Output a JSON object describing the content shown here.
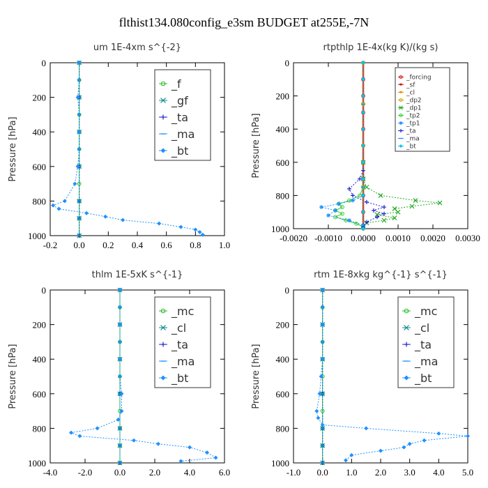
{
  "title": "flthist134.080config_e3sm  BUDGET at255E,-7N",
  "ylabel": "Pressure [hPa]",
  "chart_data": [
    {
      "type": "line",
      "title": "um  1E-4xm s^{-2}",
      "xlim": [
        -0.2,
        1.0
      ],
      "ylim": [
        1000,
        0
      ],
      "xticks": [
        "-0.2",
        "0.0",
        "0.2",
        "0.4",
        "0.6",
        "0.8",
        "1.0"
      ],
      "xtick_values": [
        -0.2,
        0.0,
        0.2,
        0.4,
        0.6,
        0.8,
        1.0
      ],
      "yticks": [
        "0",
        "200",
        "400",
        "600",
        "800",
        "1000"
      ],
      "ytick_values": [
        0,
        200,
        400,
        600,
        800,
        1000
      ],
      "legend_size": "large",
      "series": [
        {
          "name": "_f",
          "color": "#22bb22",
          "marker": "circle",
          "x": [
            0,
            0,
            0,
            0,
            0,
            0,
            0,
            0,
            0,
            0,
            0
          ],
          "y": [
            0,
            100,
            200,
            300,
            400,
            500,
            600,
            700,
            800,
            900,
            1000
          ]
        },
        {
          "name": "_gf",
          "color": "#0b8a8a",
          "marker": "x",
          "x": [
            0,
            0,
            0,
            0,
            0,
            0,
            0
          ],
          "y": [
            0,
            200,
            400,
            600,
            800,
            900,
            1000
          ]
        },
        {
          "name": "_ta",
          "color": "#2020cc",
          "marker": "plus",
          "x": [
            0,
            0,
            0,
            0,
            0,
            0,
            0
          ],
          "y": [
            0,
            200,
            400,
            600,
            800,
            900,
            1000
          ]
        },
        {
          "name": "_ma",
          "color": "#1e90ff",
          "marker": "dash",
          "x": [
            0,
            0,
            0,
            0,
            0,
            0,
            0
          ],
          "y": [
            0,
            200,
            400,
            600,
            800,
            900,
            1000
          ]
        },
        {
          "name": "_bt",
          "color": "#1e90ff",
          "marker": "diamond",
          "x": [
            0.0,
            0.0,
            -0.01,
            0.0,
            0.0,
            0.0,
            -0.01,
            -0.03,
            -0.1,
            -0.18,
            -0.14,
            0.05,
            0.18,
            0.3,
            0.55,
            0.7,
            0.8,
            0.83,
            0.85
          ],
          "y": [
            0,
            100,
            200,
            300,
            400,
            500,
            600,
            700,
            800,
            825,
            845,
            870,
            890,
            910,
            930,
            950,
            965,
            980,
            995
          ]
        }
      ]
    },
    {
      "type": "line",
      "title": "rtpthlp  1E-4x(kg K)/(kg s)",
      "xlim": [
        -0.002,
        0.003
      ],
      "ylim": [
        1000,
        0
      ],
      "xticks": [
        "-0.0020",
        "-0.0010",
        "0.0000",
        "0.0010",
        "0.0020",
        "0.0030"
      ],
      "xtick_values": [
        -0.002,
        -0.001,
        0.0,
        0.001,
        0.002,
        0.003
      ],
      "yticks": [
        "0",
        "200",
        "400",
        "600",
        "800",
        "1000"
      ],
      "ytick_values": [
        0,
        200,
        400,
        600,
        800,
        1000
      ],
      "legend_size": "small",
      "series": [
        {
          "name": "_forcing",
          "color": "#dd1111",
          "marker": "circle",
          "x": [
            0,
            0,
            0,
            0,
            0,
            0,
            0,
            0,
            0,
            0,
            0
          ],
          "y": [
            0,
            100,
            200,
            300,
            400,
            500,
            600,
            700,
            800,
            900,
            1000
          ]
        },
        {
          "name": "_sf",
          "color": "#cc2222",
          "marker": "tri",
          "x": [
            0,
            0,
            0,
            0,
            0
          ],
          "y": [
            0,
            250,
            500,
            750,
            1000
          ]
        },
        {
          "name": "_cl",
          "color": "#e69500",
          "marker": "tri",
          "x": [
            0,
            0,
            0,
            0,
            0
          ],
          "y": [
            0,
            250,
            500,
            750,
            1000
          ]
        },
        {
          "name": "_dp2",
          "color": "#ccaa00",
          "marker": "circle",
          "x": [
            0,
            0,
            0,
            0,
            0
          ],
          "y": [
            0,
            250,
            500,
            750,
            1000
          ]
        },
        {
          "name": "_dp1",
          "color": "#22aa22",
          "marker": "x",
          "x": [
            0.0,
            0.0,
            0.0001,
            0.0005,
            0.0015,
            0.0022,
            0.0014,
            0.0009,
            0.001,
            0.0004,
            0.0009,
            0.0006,
            0.0001,
            0.0
          ],
          "y": [
            600,
            700,
            750,
            800,
            830,
            845,
            865,
            880,
            900,
            915,
            935,
            950,
            965,
            990
          ]
        },
        {
          "name": "_tp2",
          "color": "#33cc33",
          "marker": "circle",
          "x": [
            0.0,
            -0.0001,
            -0.0004,
            -0.0007,
            -0.0006,
            -0.0008,
            -0.0006,
            -0.0008,
            -0.0005,
            -0.0002,
            0.0
          ],
          "y": [
            750,
            800,
            830,
            850,
            870,
            890,
            910,
            930,
            950,
            970,
            990
          ]
        },
        {
          "name": "_tp1",
          "color": "#1e90ff",
          "marker": "asterisk",
          "x": [
            0.0,
            -0.0003,
            -0.0007,
            -0.0012,
            -0.0008,
            -0.001,
            -0.0004,
            0.0
          ],
          "y": [
            800,
            830,
            850,
            870,
            890,
            920,
            950,
            980
          ]
        },
        {
          "name": "_ta",
          "color": "#2020cc",
          "marker": "plus",
          "x": [
            0.0,
            -0.0001,
            -0.0004,
            -0.0003,
            0.0001,
            0.0006,
            0.0003,
            0.0006,
            0.0004,
            0.0001,
            0.0
          ],
          "y": [
            650,
            700,
            760,
            800,
            840,
            870,
            890,
            910,
            930,
            960,
            990
          ]
        },
        {
          "name": "_ma",
          "color": "#1e90ff",
          "marker": "dash",
          "x": [
            0,
            0,
            0,
            0,
            0
          ],
          "y": [
            0,
            250,
            500,
            750,
            1000
          ]
        },
        {
          "name": "_bt",
          "color": "#00c8e6",
          "marker": "diamond",
          "x": [
            0,
            0,
            0,
            0,
            0,
            0,
            0,
            0,
            0,
            0,
            0
          ],
          "y": [
            0,
            100,
            200,
            300,
            400,
            500,
            600,
            700,
            800,
            900,
            1000
          ]
        }
      ]
    },
    {
      "type": "line",
      "title": "thlm  1E-5xK s^{-1}",
      "xlim": [
        -4.0,
        6.0
      ],
      "ylim": [
        1000,
        0
      ],
      "xticks": [
        "-4.0",
        "-2.0",
        "0.0",
        "2.0",
        "4.0",
        "6.0"
      ],
      "xtick_values": [
        -4,
        -2,
        0,
        2,
        4,
        6
      ],
      "yticks": [
        "0",
        "200",
        "400",
        "600",
        "800",
        "1000"
      ],
      "ytick_values": [
        0,
        200,
        400,
        600,
        800,
        1000
      ],
      "legend_size": "large",
      "series": [
        {
          "name": "_mc",
          "color": "#22bb22",
          "marker": "circle",
          "x": [
            0,
            0,
            0,
            0,
            0,
            0,
            0,
            0,
            0,
            0,
            0
          ],
          "y": [
            0,
            100,
            200,
            300,
            400,
            500,
            600,
            700,
            800,
            900,
            1000
          ]
        },
        {
          "name": "_cl",
          "color": "#0b8a8a",
          "marker": "x",
          "x": [
            0,
            0,
            0,
            0,
            0,
            0,
            0
          ],
          "y": [
            0,
            200,
            400,
            600,
            800,
            900,
            1000
          ]
        },
        {
          "name": "_ta",
          "color": "#2020cc",
          "marker": "plus",
          "x": [
            0,
            0,
            0,
            0,
            0,
            0,
            0
          ],
          "y": [
            0,
            200,
            400,
            600,
            800,
            900,
            1000
          ]
        },
        {
          "name": "_ma",
          "color": "#1e90ff",
          "marker": "dash",
          "x": [
            0,
            0,
            0,
            0,
            0,
            0,
            0
          ],
          "y": [
            0,
            200,
            400,
            600,
            800,
            900,
            1000
          ]
        },
        {
          "name": "_bt",
          "color": "#1e90ff",
          "marker": "diamond",
          "x": [
            0.0,
            0.0,
            0.0,
            0.0,
            0.0,
            0.0,
            0.1,
            0.1,
            -0.1,
            -1.3,
            -2.8,
            -2.3,
            0.8,
            2.2,
            4.0,
            5.0,
            5.5,
            3.5
          ],
          "y": [
            0,
            100,
            200,
            300,
            400,
            500,
            600,
            700,
            750,
            800,
            825,
            845,
            870,
            890,
            910,
            940,
            970,
            990
          ]
        }
      ]
    },
    {
      "type": "line",
      "title": "rtm  1E-8xkg kg^{-1} s^{-1}",
      "xlim": [
        -1.0,
        5.0
      ],
      "ylim": [
        1000,
        0
      ],
      "xticks": [
        "-1.0",
        "0.0",
        "1.0",
        "2.0",
        "3.0",
        "4.0",
        "5.0"
      ],
      "xtick_values": [
        -1,
        0,
        1,
        2,
        3,
        4,
        5
      ],
      "yticks": [
        "0",
        "200",
        "400",
        "600",
        "800",
        "1000"
      ],
      "ytick_values": [
        0,
        200,
        400,
        600,
        800,
        1000
      ],
      "legend_size": "large",
      "series": [
        {
          "name": "_mc",
          "color": "#22bb22",
          "marker": "circle",
          "x": [
            0,
            0,
            0,
            0,
            0,
            0,
            0,
            0,
            0,
            0,
            0
          ],
          "y": [
            0,
            100,
            200,
            300,
            400,
            500,
            600,
            700,
            800,
            900,
            1000
          ]
        },
        {
          "name": "_cl",
          "color": "#0b8a8a",
          "marker": "x",
          "x": [
            0,
            0,
            0,
            0,
            0,
            0,
            0
          ],
          "y": [
            0,
            200,
            400,
            600,
            800,
            900,
            1000
          ]
        },
        {
          "name": "_ta",
          "color": "#2020cc",
          "marker": "plus",
          "x": [
            0,
            0,
            0,
            0,
            0,
            0,
            0
          ],
          "y": [
            0,
            200,
            400,
            600,
            800,
            900,
            1000
          ]
        },
        {
          "name": "_ma",
          "color": "#1e90ff",
          "marker": "dash",
          "x": [
            0,
            0,
            0,
            0,
            0,
            0,
            0
          ],
          "y": [
            0,
            200,
            400,
            600,
            800,
            900,
            1000
          ]
        },
        {
          "name": "_bt",
          "color": "#1e90ff",
          "marker": "diamond",
          "x": [
            0.0,
            0.0,
            0.0,
            0.0,
            0.0,
            -0.05,
            -0.1,
            -0.2,
            -0.15,
            0.0,
            1.5,
            4.0,
            5.0,
            3.5,
            3.0,
            2.8,
            2.0,
            1.0,
            0.8
          ],
          "y": [
            0,
            100,
            200,
            300,
            400,
            500,
            600,
            700,
            740,
            780,
            800,
            830,
            845,
            870,
            890,
            910,
            930,
            955,
            985
          ]
        }
      ]
    }
  ]
}
